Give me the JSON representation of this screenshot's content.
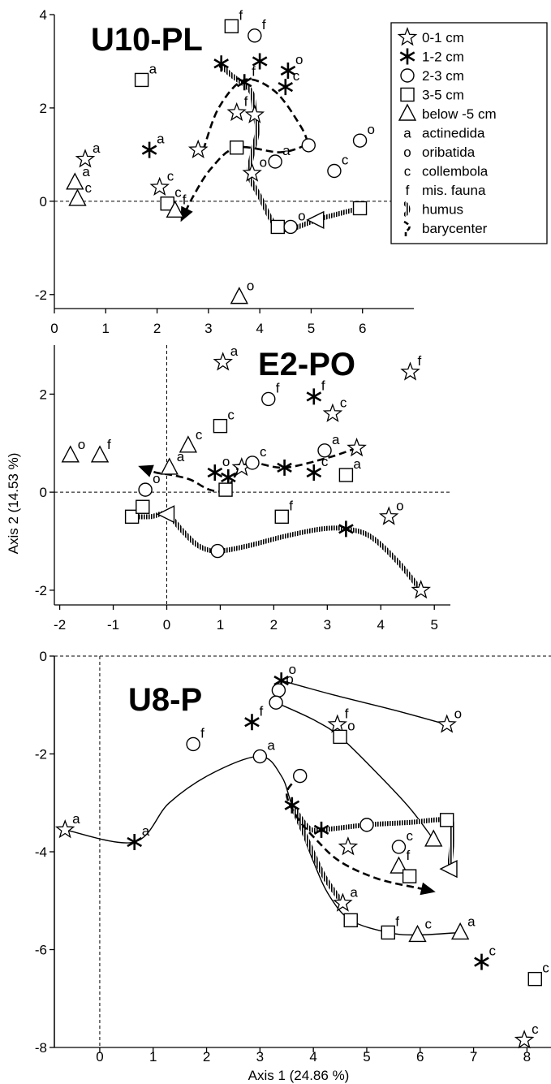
{
  "legend": {
    "items": [
      {
        "symbol": "star",
        "label": "0-1 cm"
      },
      {
        "symbol": "asterisk",
        "label": "1-2 cm"
      },
      {
        "symbol": "circle",
        "label": "2-3 cm"
      },
      {
        "symbol": "square",
        "label": "3-5 cm"
      },
      {
        "symbol": "triangle",
        "label": "below -5 cm"
      },
      {
        "symbol": "letter-a",
        "letter": "a",
        "label": "actinedida"
      },
      {
        "symbol": "letter-o",
        "letter": "o",
        "label": "oribatida"
      },
      {
        "symbol": "letter-c",
        "letter": "c",
        "label": "collembola"
      },
      {
        "symbol": "letter-f",
        "letter": "f",
        "label": "mis. fauna"
      },
      {
        "symbol": "humus-line",
        "label": "humus"
      },
      {
        "symbol": "barycenter-line",
        "label": "barycenter"
      }
    ]
  },
  "chart_data": [
    {
      "type": "scatter",
      "title": "U10-PL",
      "xlabel": "",
      "ylabel": "",
      "xlim": [
        0,
        7
      ],
      "ylim": [
        -2.3,
        4
      ],
      "xticks": [
        0,
        1,
        2,
        3,
        4,
        5,
        6
      ],
      "yticks": [
        -2,
        0,
        2,
        4
      ],
      "zero_lines": [
        "y"
      ],
      "points": [
        {
          "x": 0.6,
          "y": 0.9,
          "symbol": "star",
          "tag": "a"
        },
        {
          "x": 0.4,
          "y": 0.4,
          "symbol": "triangle",
          "tag": "a"
        },
        {
          "x": 0.45,
          "y": 0.05,
          "symbol": "triangle",
          "tag": "c"
        },
        {
          "x": 1.7,
          "y": 2.6,
          "symbol": "square",
          "tag": "a"
        },
        {
          "x": 1.85,
          "y": 1.1,
          "symbol": "asterisk",
          "tag": "a"
        },
        {
          "x": 2.05,
          "y": 0.3,
          "symbol": "star",
          "tag": "c"
        },
        {
          "x": 2.2,
          "y": -0.05,
          "symbol": "square",
          "tag": "c"
        },
        {
          "x": 2.35,
          "y": -0.2,
          "symbol": "triangle",
          "tag": "f"
        },
        {
          "x": 2.8,
          "y": 1.1,
          "symbol": "star",
          "tag": ""
        },
        {
          "x": 3.25,
          "y": 2.95,
          "symbol": "asterisk",
          "tag": ""
        },
        {
          "x": 3.45,
          "y": 3.75,
          "symbol": "square",
          "tag": "f"
        },
        {
          "x": 3.9,
          "y": 3.55,
          "symbol": "circle",
          "tag": "f"
        },
        {
          "x": 3.55,
          "y": 1.9,
          "symbol": "star",
          "tag": "f"
        },
        {
          "x": 3.9,
          "y": 1.85,
          "symbol": "star",
          "tag": ""
        },
        {
          "x": 3.7,
          "y": 2.55,
          "symbol": "asterisk",
          "tag": "f"
        },
        {
          "x": 4.0,
          "y": 3.0,
          "symbol": "asterisk",
          "tag": ""
        },
        {
          "x": 4.55,
          "y": 2.8,
          "symbol": "asterisk",
          "tag": "o"
        },
        {
          "x": 4.5,
          "y": 2.45,
          "symbol": "asterisk",
          "tag": "c"
        },
        {
          "x": 3.55,
          "y": 1.15,
          "symbol": "square",
          "tag": ""
        },
        {
          "x": 3.85,
          "y": 0.6,
          "symbol": "star",
          "tag": "o"
        },
        {
          "x": 4.3,
          "y": 0.85,
          "symbol": "circle",
          "tag": "a"
        },
        {
          "x": 4.95,
          "y": 1.2,
          "symbol": "circle",
          "tag": ""
        },
        {
          "x": 5.45,
          "y": 0.65,
          "symbol": "circle",
          "tag": "c"
        },
        {
          "x": 5.95,
          "y": 1.3,
          "symbol": "circle",
          "tag": "o"
        },
        {
          "x": 4.35,
          "y": -0.55,
          "symbol": "square",
          "tag": ""
        },
        {
          "x": 4.6,
          "y": -0.55,
          "symbol": "circle",
          "tag": "o"
        },
        {
          "x": 5.1,
          "y": -0.4,
          "symbol": "triangle-left",
          "tag": ""
        },
        {
          "x": 5.95,
          "y": -0.15,
          "symbol": "square",
          "tag": ""
        },
        {
          "x": 3.6,
          "y": -2.05,
          "symbol": "triangle",
          "tag": "o"
        }
      ],
      "lines": [
        {
          "kind": "humus",
          "points": [
            [
              3.2,
              2.95
            ],
            [
              3.45,
              2.7
            ],
            [
              3.7,
              2.5
            ],
            [
              3.85,
              2.3
            ],
            [
              3.9,
              1.9
            ],
            [
              3.95,
              1.5
            ],
            [
              3.85,
              1.0
            ],
            [
              3.8,
              0.55
            ],
            [
              4.0,
              0.1
            ],
            [
              4.2,
              -0.35
            ],
            [
              4.35,
              -0.55
            ],
            [
              4.6,
              -0.6
            ],
            [
              5.1,
              -0.4
            ],
            [
              5.6,
              -0.25
            ],
            [
              5.95,
              -0.15
            ]
          ]
        },
        {
          "kind": "barycenter",
          "arrow": "end",
          "points": [
            [
              4.9,
              1.2
            ],
            [
              4.4,
              1.05
            ],
            [
              3.55,
              1.15
            ],
            [
              3.05,
              0.7
            ],
            [
              2.7,
              0.1
            ],
            [
              2.5,
              -0.35
            ]
          ]
        },
        {
          "kind": "barycenter",
          "arrow": "none",
          "points": [
            [
              2.9,
              1.1
            ],
            [
              3.2,
              2.0
            ],
            [
              3.7,
              2.6
            ],
            [
              4.3,
              2.35
            ],
            [
              4.8,
              1.6
            ],
            [
              4.95,
              1.2
            ]
          ]
        }
      ]
    },
    {
      "type": "scatter",
      "title": "E2-PO",
      "xlabel": "",
      "ylabel": "Axis 2 (14.53 %)",
      "xlim": [
        -2.1,
        5.3
      ],
      "ylim": [
        -2.3,
        3.0
      ],
      "xticks": [
        -2,
        -1,
        0,
        1,
        2,
        3,
        4,
        5
      ],
      "yticks": [
        -2,
        0,
        2
      ],
      "zero_lines": [
        "x",
        "y"
      ],
      "points": [
        {
          "x": -1.8,
          "y": 0.75,
          "symbol": "triangle",
          "tag": "o"
        },
        {
          "x": -1.25,
          "y": 0.75,
          "symbol": "triangle",
          "tag": "f"
        },
        {
          "x": -0.65,
          "y": -0.5,
          "symbol": "square",
          "tag": ""
        },
        {
          "x": -0.45,
          "y": -0.3,
          "symbol": "square",
          "tag": ""
        },
        {
          "x": -0.4,
          "y": 0.05,
          "symbol": "circle",
          "tag": "o"
        },
        {
          "x": 0.05,
          "y": 0.5,
          "symbol": "triangle",
          "tag": "a"
        },
        {
          "x": 0.0,
          "y": -0.45,
          "symbol": "triangle-left",
          "tag": ""
        },
        {
          "x": 0.4,
          "y": 0.95,
          "symbol": "triangle",
          "tag": "c"
        },
        {
          "x": 0.95,
          "y": -1.2,
          "symbol": "circle",
          "tag": ""
        },
        {
          "x": 1.0,
          "y": 1.35,
          "symbol": "square",
          "tag": "c"
        },
        {
          "x": 1.05,
          "y": 2.65,
          "symbol": "star",
          "tag": "a"
        },
        {
          "x": 0.9,
          "y": 0.4,
          "symbol": "asterisk",
          "tag": "o"
        },
        {
          "x": 1.15,
          "y": 0.3,
          "symbol": "asterisk",
          "tag": "a"
        },
        {
          "x": 1.1,
          "y": 0.05,
          "symbol": "square",
          "tag": ""
        },
        {
          "x": 1.4,
          "y": 0.5,
          "symbol": "star",
          "tag": ""
        },
        {
          "x": 1.6,
          "y": 0.6,
          "symbol": "circle",
          "tag": "c"
        },
        {
          "x": 1.9,
          "y": 1.9,
          "symbol": "circle",
          "tag": "f"
        },
        {
          "x": 2.2,
          "y": 0.5,
          "symbol": "asterisk",
          "tag": ""
        },
        {
          "x": 2.15,
          "y": -0.5,
          "symbol": "square",
          "tag": "f"
        },
        {
          "x": 2.75,
          "y": 1.95,
          "symbol": "asterisk",
          "tag": "f"
        },
        {
          "x": 2.75,
          "y": 0.4,
          "symbol": "asterisk",
          "tag": "c"
        },
        {
          "x": 2.95,
          "y": 0.85,
          "symbol": "circle",
          "tag": "a"
        },
        {
          "x": 3.1,
          "y": 1.6,
          "symbol": "star",
          "tag": "c"
        },
        {
          "x": 3.55,
          "y": 0.9,
          "symbol": "star",
          "tag": ""
        },
        {
          "x": 3.35,
          "y": 0.35,
          "symbol": "square",
          "tag": "a"
        },
        {
          "x": 3.35,
          "y": -0.75,
          "symbol": "asterisk",
          "tag": ""
        },
        {
          "x": 4.15,
          "y": -0.5,
          "symbol": "star",
          "tag": "o"
        },
        {
          "x": 4.55,
          "y": 2.45,
          "symbol": "star",
          "tag": "f"
        },
        {
          "x": 4.75,
          "y": -2.0,
          "symbol": "star",
          "tag": ""
        }
      ],
      "lines": [
        {
          "kind": "humus",
          "points": [
            [
              -0.65,
              -0.5
            ],
            [
              -0.3,
              -0.5
            ],
            [
              0.0,
              -0.45
            ],
            [
              0.3,
              -0.8
            ],
            [
              0.6,
              -1.1
            ],
            [
              0.95,
              -1.2
            ],
            [
              1.5,
              -1.1
            ],
            [
              2.2,
              -0.9
            ],
            [
              2.9,
              -0.75
            ],
            [
              3.35,
              -0.75
            ],
            [
              3.8,
              -0.9
            ],
            [
              4.3,
              -1.4
            ],
            [
              4.75,
              -2.0
            ]
          ]
        },
        {
          "kind": "barycenter",
          "arrow": "end",
          "points": [
            [
              3.55,
              0.9
            ],
            [
              3.0,
              0.7
            ],
            [
              2.2,
              0.5
            ],
            [
              1.6,
              0.6
            ],
            [
              1.35,
              0.45
            ],
            [
              1.1,
              0.05
            ],
            [
              0.8,
              0.05
            ],
            [
              0.45,
              0.25
            ],
            [
              0.1,
              0.35
            ],
            [
              -0.2,
              0.4
            ],
            [
              -0.45,
              0.5
            ]
          ]
        }
      ]
    },
    {
      "type": "scatter",
      "title": "U8-P",
      "xlabel": "Axis 1 (24.86 %)",
      "ylabel": "",
      "xlim": [
        -0.85,
        8.45
      ],
      "ylim": [
        -8,
        0
      ],
      "xticks": [
        0,
        1,
        2,
        3,
        4,
        5,
        6,
        7,
        8
      ],
      "yticks": [
        -8,
        -6,
        -4,
        -2,
        0
      ],
      "zero_lines": [
        "x",
        "y"
      ],
      "points": [
        {
          "x": -0.65,
          "y": -3.55,
          "symbol": "star",
          "tag": "a"
        },
        {
          "x": 0.65,
          "y": -3.8,
          "symbol": "asterisk",
          "tag": "a"
        },
        {
          "x": 1.75,
          "y": -1.8,
          "symbol": "circle",
          "tag": "f"
        },
        {
          "x": 2.85,
          "y": -1.35,
          "symbol": "asterisk",
          "tag": "f"
        },
        {
          "x": 3.0,
          "y": -2.05,
          "symbol": "circle",
          "tag": "a"
        },
        {
          "x": 3.4,
          "y": -0.5,
          "symbol": "asterisk",
          "tag": "o"
        },
        {
          "x": 3.35,
          "y": -0.7,
          "symbol": "circle",
          "tag": "o"
        },
        {
          "x": 3.3,
          "y": -0.95,
          "symbol": "circle",
          "tag": ""
        },
        {
          "x": 3.6,
          "y": -3.05,
          "symbol": "asterisk",
          "tag": ""
        },
        {
          "x": 3.75,
          "y": -2.45,
          "symbol": "circle",
          "tag": ""
        },
        {
          "x": 4.15,
          "y": -3.55,
          "symbol": "asterisk",
          "tag": ""
        },
        {
          "x": 4.45,
          "y": -1.4,
          "symbol": "star",
          "tag": "f"
        },
        {
          "x": 4.5,
          "y": -1.65,
          "symbol": "square",
          "tag": "o"
        },
        {
          "x": 4.65,
          "y": -3.9,
          "symbol": "star",
          "tag": ""
        },
        {
          "x": 4.55,
          "y": -5.05,
          "symbol": "star",
          "tag": "a"
        },
        {
          "x": 4.7,
          "y": -5.4,
          "symbol": "square",
          "tag": ""
        },
        {
          "x": 5.0,
          "y": -3.45,
          "symbol": "circle",
          "tag": ""
        },
        {
          "x": 5.4,
          "y": -5.65,
          "symbol": "square",
          "tag": "f"
        },
        {
          "x": 5.6,
          "y": -3.9,
          "symbol": "circle",
          "tag": "c"
        },
        {
          "x": 5.6,
          "y": -4.3,
          "symbol": "triangle",
          "tag": "f"
        },
        {
          "x": 5.8,
          "y": -4.5,
          "symbol": "square",
          "tag": ""
        },
        {
          "x": 5.95,
          "y": -5.7,
          "symbol": "triangle",
          "tag": "c"
        },
        {
          "x": 6.5,
          "y": -1.4,
          "symbol": "star",
          "tag": "o"
        },
        {
          "x": 6.25,
          "y": -3.75,
          "symbol": "triangle",
          "tag": ""
        },
        {
          "x": 6.5,
          "y": -3.35,
          "symbol": "square",
          "tag": ""
        },
        {
          "x": 6.55,
          "y": -4.35,
          "symbol": "triangle-left",
          "tag": ""
        },
        {
          "x": 6.75,
          "y": -5.65,
          "symbol": "triangle",
          "tag": "a"
        },
        {
          "x": 7.15,
          "y": -6.25,
          "symbol": "asterisk",
          "tag": "c"
        },
        {
          "x": 8.15,
          "y": -6.6,
          "symbol": "square",
          "tag": "c"
        },
        {
          "x": 7.95,
          "y": -7.85,
          "symbol": "star",
          "tag": "c"
        }
      ],
      "lines": [
        {
          "kind": "solid",
          "points": [
            [
              3.4,
              -0.5
            ],
            [
              4.4,
              -0.8
            ],
            [
              5.5,
              -1.1
            ],
            [
              6.5,
              -1.4
            ]
          ]
        },
        {
          "kind": "solid",
          "points": [
            [
              3.3,
              -0.95
            ],
            [
              4.0,
              -1.3
            ],
            [
              4.5,
              -1.65
            ],
            [
              5.2,
              -2.4
            ],
            [
              5.8,
              -3.1
            ],
            [
              6.25,
              -3.75
            ]
          ]
        },
        {
          "kind": "solid",
          "points": [
            [
              -0.65,
              -3.55
            ],
            [
              0.65,
              -3.8
            ],
            [
              1.3,
              -3.0
            ],
            [
              2.1,
              -2.4
            ],
            [
              3.0,
              -2.05
            ],
            [
              3.4,
              -2.45
            ],
            [
              3.6,
              -3.05
            ],
            [
              4.0,
              -4.2
            ],
            [
              4.3,
              -4.9
            ],
            [
              4.7,
              -5.4
            ],
            [
              5.4,
              -5.65
            ],
            [
              5.95,
              -5.7
            ],
            [
              6.75,
              -5.65
            ]
          ]
        },
        {
          "kind": "humus",
          "points": [
            [
              3.6,
              -3.05
            ],
            [
              3.9,
              -3.5
            ],
            [
              4.15,
              -3.55
            ],
            [
              5.0,
              -3.45
            ],
            [
              5.8,
              -3.4
            ],
            [
              6.5,
              -3.35
            ],
            [
              6.6,
              -3.6
            ],
            [
              6.55,
              -4.35
            ]
          ]
        },
        {
          "kind": "humus",
          "points": [
            [
              3.6,
              -3.05
            ],
            [
              3.9,
              -3.8
            ],
            [
              4.2,
              -4.5
            ],
            [
              4.55,
              -5.05
            ]
          ]
        },
        {
          "kind": "barycenter",
          "arrow": "end",
          "points": [
            [
              3.75,
              -2.45
            ],
            [
              3.5,
              -2.8
            ],
            [
              3.7,
              -3.3
            ],
            [
              4.05,
              -3.75
            ],
            [
              4.5,
              -4.2
            ],
            [
              5.2,
              -4.55
            ],
            [
              6.0,
              -4.75
            ],
            [
              6.2,
              -4.8
            ]
          ]
        }
      ]
    }
  ]
}
